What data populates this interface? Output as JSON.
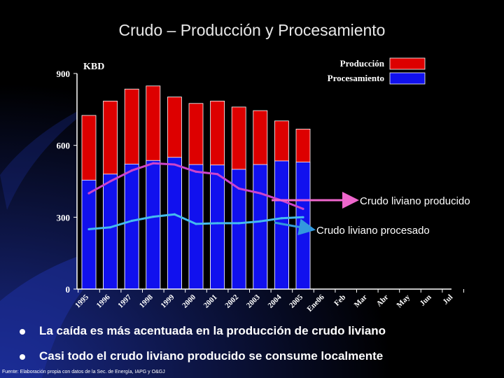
{
  "slide": {
    "title": "Crudo – Producción y Procesamiento",
    "bullets": [
      "La caída es más acentuada en la producción de crudo liviano",
      "Casi todo el crudo liviano producido se consume localmente"
    ],
    "footer": "Fuente: Elaboración propia con datos de la Sec. de Energía, IAPG y O&GJ"
  },
  "colors": {
    "produccion": "#dd0000",
    "procesamiento": "#1111ee",
    "liviano_producido": "#cc44cc",
    "liviano_procesado": "#44bbee",
    "arrow_producido": "#ee66cc",
    "arrow_procesado": "#3399dd"
  },
  "chart_data": {
    "type": "bar",
    "unit_label": "KBD",
    "ylim": [
      0,
      900
    ],
    "yticks": [
      "0",
      "300",
      "600",
      "900"
    ],
    "categories": [
      "1995",
      "1996",
      "1997",
      "1998",
      "1999",
      "2000",
      "2001",
      "2002",
      "2003",
      "2004",
      "2005",
      "Ene06",
      "Feb",
      "Mar",
      "Abr",
      "May",
      "Jun",
      "Jul"
    ],
    "series": [
      {
        "name": "Producción",
        "kind": "bar",
        "values": [
          725,
          785,
          835,
          848,
          802,
          775,
          785,
          760,
          745,
          702,
          668,
          null,
          null,
          null,
          null,
          null,
          null,
          null
        ]
      },
      {
        "name": "Procesamiento",
        "kind": "bar",
        "values": [
          455,
          480,
          522,
          537,
          550,
          520,
          518,
          500,
          520,
          535,
          530,
          null,
          null,
          null,
          null,
          null,
          null,
          null
        ]
      },
      {
        "name": "Crudo liviano producido",
        "kind": "line",
        "values": [
          400,
          450,
          495,
          525,
          520,
          490,
          480,
          420,
          400,
          370,
          335,
          null,
          null,
          null,
          null,
          null,
          null,
          null
        ]
      },
      {
        "name": "Crudo liviano procesado",
        "kind": "line",
        "values": [
          250,
          258,
          285,
          302,
          312,
          272,
          275,
          275,
          283,
          296,
          300,
          null,
          null,
          null,
          null,
          null,
          null,
          null
        ]
      }
    ]
  }
}
